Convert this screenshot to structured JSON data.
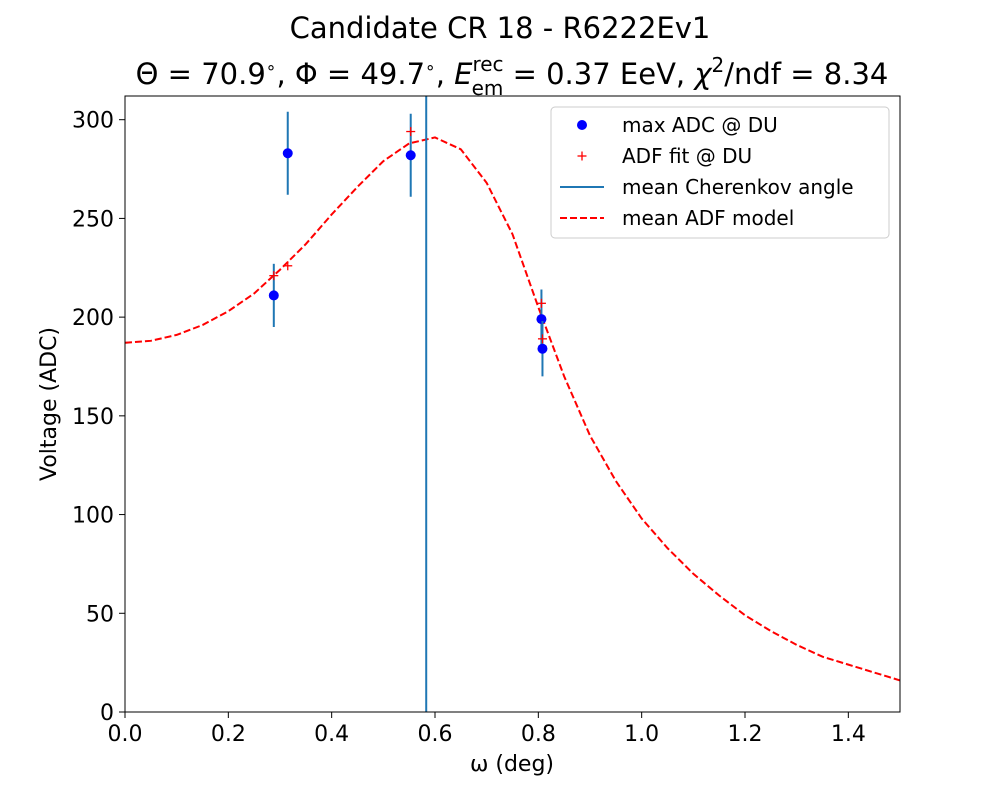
{
  "chart_data": {
    "type": "scatter",
    "title": "Candidate CR 18 - R6222Ev1",
    "subtitle": {
      "theta_symbol": "Θ",
      "theta_value": "70.9",
      "phi_symbol": "Φ",
      "phi_value": "49.7",
      "energy_symbol": "E",
      "energy_sup": "rec",
      "energy_sub": "em",
      "energy_value": "0.37 EeV",
      "chi_symbol": "χ",
      "chi_power": "2",
      "chi_suffix": "/ndf",
      "chi_value": "8.34"
    },
    "xlabel": "ω (deg)",
    "ylabel": "Voltage (ADC)",
    "xlim": [
      0.0,
      1.5
    ],
    "ylim": [
      0,
      312
    ],
    "xticks": [
      "0.0",
      "0.2",
      "0.4",
      "0.6",
      "0.8",
      "1.0",
      "1.2",
      "1.4"
    ],
    "yticks": [
      "0",
      "50",
      "100",
      "150",
      "200",
      "250",
      "300"
    ],
    "grid": false,
    "legend_position": "top-right",
    "legend": [
      {
        "label": "max ADC @ DU",
        "marker": "dot",
        "color": "#0000ff"
      },
      {
        "label": "ADF fit @ DU",
        "marker": "plus",
        "color": "#ff0000"
      },
      {
        "label": "mean Cherenkov angle",
        "marker": "line",
        "color": "#1f77b4"
      },
      {
        "label": "mean ADF model",
        "marker": "dashed",
        "color": "#ff0000"
      }
    ],
    "series": [
      {
        "name": "max ADC @ DU",
        "kind": "errorbar",
        "color": "#0000ff",
        "errcolor": "#1f77b4",
        "points": [
          {
            "x": 0.288,
            "y": 211,
            "err": 16
          },
          {
            "x": 0.315,
            "y": 283,
            "err": 21
          },
          {
            "x": 0.553,
            "y": 282,
            "err": 21
          },
          {
            "x": 0.806,
            "y": 199,
            "err": 15
          },
          {
            "x": 0.808,
            "y": 184,
            "err": 14
          }
        ]
      },
      {
        "name": "ADF fit @ DU",
        "kind": "plus",
        "color": "#ff0000",
        "points": [
          {
            "x": 0.288,
            "y": 221
          },
          {
            "x": 0.315,
            "y": 226
          },
          {
            "x": 0.553,
            "y": 294
          },
          {
            "x": 0.806,
            "y": 207
          },
          {
            "x": 0.808,
            "y": 189
          }
        ]
      },
      {
        "name": "mean Cherenkov angle",
        "kind": "vline",
        "color": "#1f77b4",
        "x": 0.583
      },
      {
        "name": "mean ADF model",
        "kind": "dashed-line",
        "color": "#ff0000",
        "points": [
          {
            "x": 0.0,
            "y": 187
          },
          {
            "x": 0.05,
            "y": 188
          },
          {
            "x": 0.1,
            "y": 191
          },
          {
            "x": 0.15,
            "y": 196
          },
          {
            "x": 0.2,
            "y": 203
          },
          {
            "x": 0.25,
            "y": 212
          },
          {
            "x": 0.3,
            "y": 224
          },
          {
            "x": 0.35,
            "y": 237
          },
          {
            "x": 0.4,
            "y": 252
          },
          {
            "x": 0.45,
            "y": 266
          },
          {
            "x": 0.5,
            "y": 279
          },
          {
            "x": 0.55,
            "y": 288
          },
          {
            "x": 0.6,
            "y": 291
          },
          {
            "x": 0.65,
            "y": 285
          },
          {
            "x": 0.7,
            "y": 268
          },
          {
            "x": 0.75,
            "y": 242
          },
          {
            "x": 0.8,
            "y": 205
          },
          {
            "x": 0.85,
            "y": 170
          },
          {
            "x": 0.9,
            "y": 140
          },
          {
            "x": 0.95,
            "y": 117
          },
          {
            "x": 1.0,
            "y": 98
          },
          {
            "x": 1.05,
            "y": 83
          },
          {
            "x": 1.1,
            "y": 70
          },
          {
            "x": 1.15,
            "y": 59
          },
          {
            "x": 1.2,
            "y": 49
          },
          {
            "x": 1.25,
            "y": 41
          },
          {
            "x": 1.3,
            "y": 34
          },
          {
            "x": 1.35,
            "y": 28
          },
          {
            "x": 1.4,
            "y": 24
          },
          {
            "x": 1.45,
            "y": 20
          },
          {
            "x": 1.5,
            "y": 16
          }
        ]
      }
    ]
  }
}
